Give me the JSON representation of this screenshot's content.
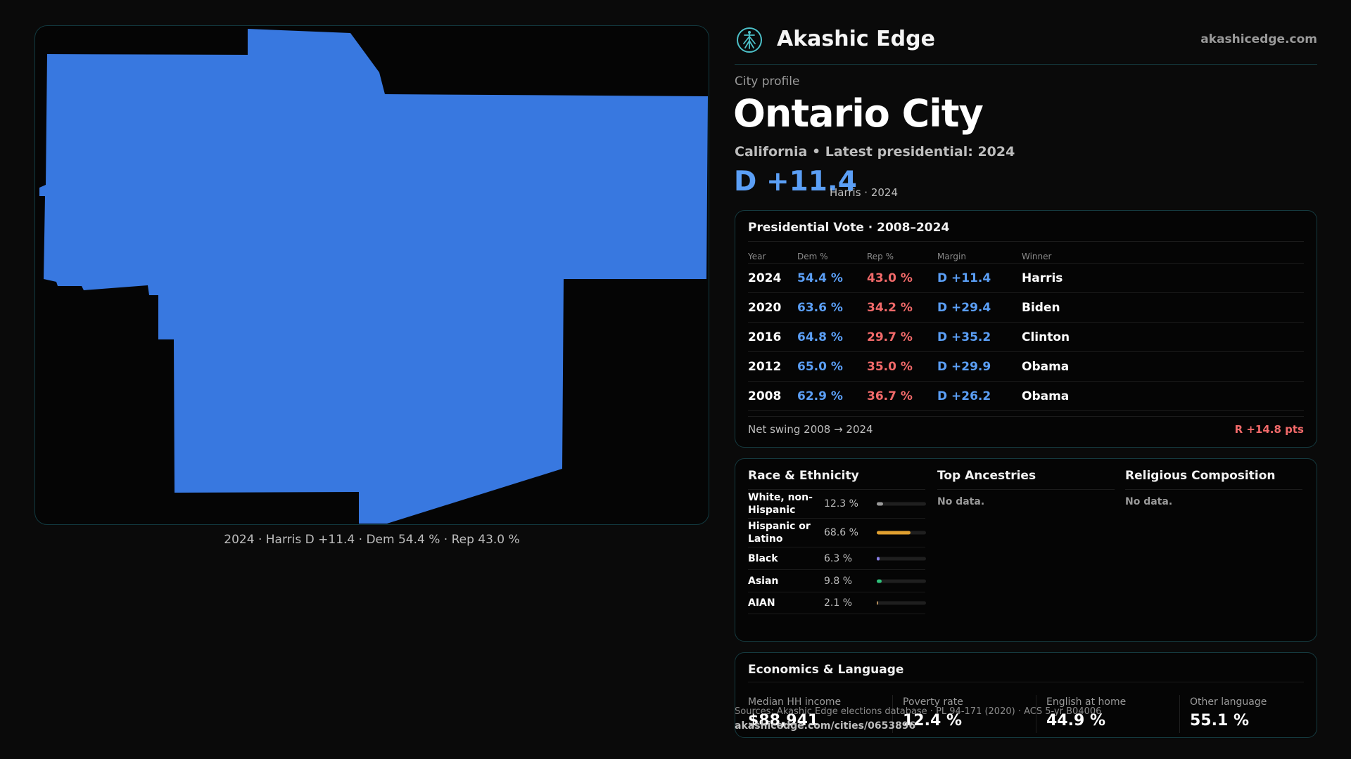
{
  "map": {
    "fill_color": "#3878e0",
    "caption": "2024 · Harris D +11.4 · Dem 54.4 % · Rep 43.0 %"
  },
  "header": {
    "brand_name": "Akashic Edge",
    "brand_icon": "tree-of-life-icon",
    "domain": "akashicedge.com"
  },
  "profile": {
    "kicker": "City profile",
    "city": "Ontario City",
    "subtitle": "California • Latest presidential: 2024",
    "margin": "D +11.4",
    "margin_note": "Harris · 2024"
  },
  "votes": {
    "title": "Presidential Vote · 2008–2024",
    "headers": {
      "year": "Year",
      "dem": "Dem %",
      "rep": "Rep %",
      "margin": "Margin",
      "winner": "Winner"
    },
    "rows": [
      {
        "year": "2024",
        "dem": "54.4 %",
        "rep": "43.0 %",
        "margin": "D +11.4",
        "winner": "Harris"
      },
      {
        "year": "2020",
        "dem": "63.6 %",
        "rep": "34.2 %",
        "margin": "D +29.4",
        "winner": "Biden"
      },
      {
        "year": "2016",
        "dem": "64.8 %",
        "rep": "29.7 %",
        "margin": "D +35.2",
        "winner": "Clinton"
      },
      {
        "year": "2012",
        "dem": "65.0 %",
        "rep": "35.0 %",
        "margin": "D +29.9",
        "winner": "Obama"
      },
      {
        "year": "2008",
        "dem": "62.9 %",
        "rep": "36.7 %",
        "margin": "D +26.2",
        "winner": "Obama"
      }
    ],
    "swing_label": "Net swing 2008 → 2024",
    "swing_value": "R +14.8 pts"
  },
  "demographics": {
    "race": {
      "title": "Race & Ethnicity",
      "rows": [
        {
          "label": "White, non-Hispanic",
          "pct": "12.3 %",
          "value": 0.123,
          "color": "#9a9a9a"
        },
        {
          "label": "Hispanic or Latino",
          "pct": "68.6 %",
          "value": 0.686,
          "color": "#e0a030"
        },
        {
          "label": "Black",
          "pct": "6.3 %",
          "value": 0.063,
          "color": "#8a7fe8"
        },
        {
          "label": "Asian",
          "pct": "9.8 %",
          "value": 0.098,
          "color": "#2fc07a"
        },
        {
          "label": "AIAN",
          "pct": "2.1 %",
          "value": 0.021,
          "color": "#b08a5a"
        }
      ]
    },
    "ancestries": {
      "title": "Top Ancestries",
      "empty": "No data."
    },
    "religion": {
      "title": "Religious Composition",
      "empty": "No data."
    }
  },
  "economics": {
    "title": "Economics & Language",
    "stats": [
      {
        "label": "Median HH income",
        "value": "$88,941"
      },
      {
        "label": "Poverty rate",
        "value": "12.4 %"
      },
      {
        "label": "English at home",
        "value": "44.9 %"
      },
      {
        "label": "Other language",
        "value": "55.1 %"
      }
    ]
  },
  "footer": {
    "source": "Sources: Akashic Edge elections database · PL 94-171 (2020) · ACS 5-yr B04006",
    "url": "akashicedge.com/cities/0653896"
  }
}
